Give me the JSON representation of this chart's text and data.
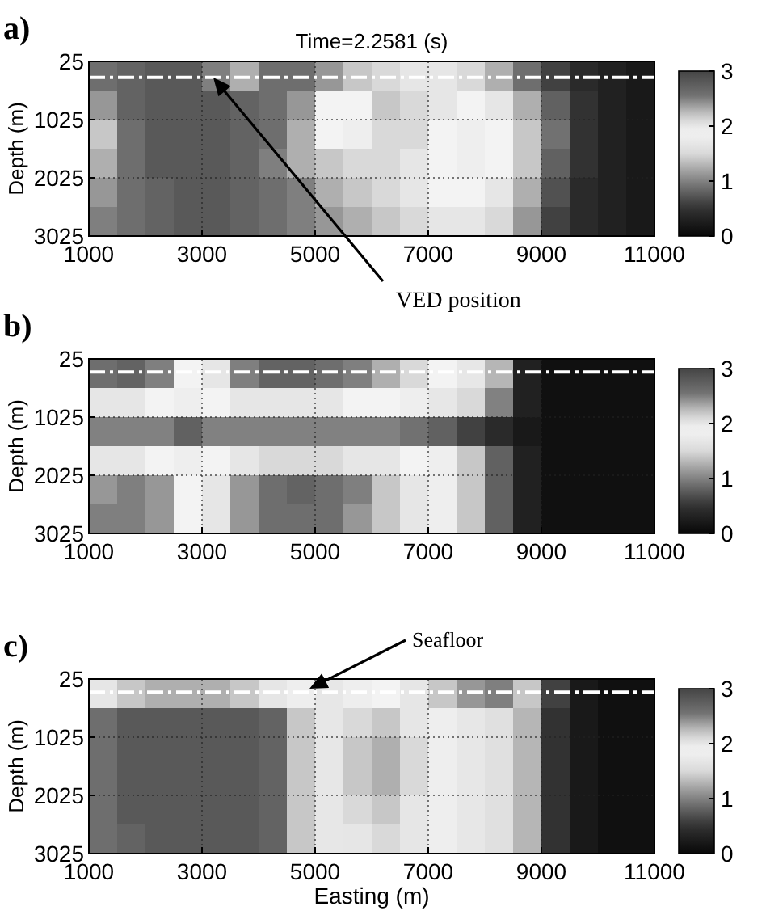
{
  "chart_data": [
    {
      "type": "heatmap",
      "title": "Time=2.2581 (s)",
      "ylabel": "Depth (m)",
      "annotations": [
        "a)",
        "VED position"
      ],
      "x": [
        1250,
        1750,
        2250,
        2750,
        3250,
        3750,
        4250,
        4750,
        5250,
        5750,
        6250,
        6750,
        7250,
        7750,
        8250,
        8750,
        9250,
        9750,
        10250,
        10750
      ],
      "cells": [
        [
          2.6,
          2.7,
          2.8,
          2.8,
          2.5,
          2.3,
          2.6,
          2.6,
          2.4,
          2.2,
          2.1,
          2.0,
          2.0,
          2.1,
          2.3,
          2.6,
          0.6,
          0.4,
          0.3,
          0.2
        ],
        [
          2.4,
          2.7,
          2.8,
          2.8,
          2.8,
          2.7,
          2.6,
          2.4,
          1.9,
          1.9,
          2.2,
          2.1,
          2.0,
          1.9,
          2.0,
          2.3,
          0.8,
          0.5,
          0.3,
          0.2
        ],
        [
          2.2,
          2.6,
          2.8,
          2.8,
          2.8,
          2.7,
          2.6,
          2.3,
          1.9,
          1.8,
          2.1,
          2.1,
          1.9,
          1.8,
          1.9,
          2.2,
          0.9,
          0.5,
          0.3,
          0.2
        ],
        [
          2.3,
          2.6,
          2.8,
          2.8,
          2.8,
          2.7,
          2.5,
          2.3,
          2.2,
          2.1,
          2.1,
          2.0,
          1.9,
          1.8,
          1.9,
          2.2,
          0.8,
          0.5,
          0.3,
          0.2
        ],
        [
          2.4,
          2.6,
          2.7,
          2.8,
          2.8,
          2.7,
          2.6,
          2.5,
          2.3,
          2.2,
          2.1,
          2.0,
          1.9,
          1.9,
          2.0,
          2.3,
          0.7,
          0.4,
          0.3,
          0.2
        ],
        [
          2.5,
          2.6,
          2.7,
          2.8,
          2.8,
          2.7,
          2.6,
          2.5,
          2.4,
          2.3,
          2.2,
          2.1,
          2.0,
          2.0,
          2.1,
          2.4,
          0.6,
          0.4,
          0.3,
          0.2
        ]
      ],
      "xlim": [
        1000,
        11000
      ],
      "xticks": [
        1000,
        3000,
        5000,
        7000,
        9000,
        11000
      ],
      "ylim": [
        3025,
        25
      ],
      "yticks": [
        25,
        1025,
        2025,
        3025
      ],
      "clim": [
        0,
        3
      ],
      "cticks": [
        0,
        1,
        2,
        3
      ],
      "grid": true,
      "ref_lines": [
        {
          "axis": "y",
          "value": 300,
          "line_style": "dashed",
          "color": "#ffffff"
        }
      ]
    },
    {
      "type": "heatmap",
      "ylabel": "Depth (m)",
      "annotations": [
        "b)"
      ],
      "x": [
        1250,
        1750,
        2250,
        2750,
        3250,
        3750,
        4250,
        4750,
        5250,
        5750,
        6250,
        6750,
        7250,
        7750,
        8250,
        8750,
        9250,
        9750,
        10250,
        10750
      ],
      "cells": [
        [
          2.6,
          2.7,
          2.5,
          1.9,
          2.0,
          2.5,
          2.7,
          2.7,
          2.6,
          2.5,
          2.3,
          2.1,
          1.9,
          1.7,
          1.3,
          0.3,
          0.1,
          0.1,
          0.1,
          0.1
        ],
        [
          2.0,
          2.0,
          1.9,
          1.8,
          1.9,
          2.0,
          2.0,
          2.0,
          2.0,
          1.9,
          1.9,
          1.8,
          1.7,
          1.5,
          1.0,
          0.3,
          0.1,
          0.1,
          0.1,
          0.1
        ],
        [
          1.0,
          1.0,
          1.0,
          0.8,
          1.0,
          1.0,
          1.0,
          1.0,
          1.0,
          1.0,
          1.0,
          0.9,
          0.8,
          0.6,
          0.4,
          0.2,
          0.1,
          0.1,
          0.1,
          0.1
        ],
        [
          2.0,
          2.0,
          1.9,
          1.8,
          1.9,
          2.0,
          2.1,
          2.1,
          2.1,
          2.0,
          2.0,
          1.9,
          1.8,
          1.4,
          0.8,
          0.3,
          0.1,
          0.1,
          0.1,
          0.1
        ],
        [
          2.4,
          2.5,
          2.4,
          1.9,
          2.0,
          2.4,
          2.6,
          2.7,
          2.6,
          2.5,
          2.2,
          2.0,
          1.8,
          1.4,
          0.8,
          0.3,
          0.1,
          0.1,
          0.1,
          0.1
        ],
        [
          2.5,
          2.5,
          2.4,
          1.9,
          2.0,
          2.4,
          2.6,
          2.6,
          2.6,
          2.4,
          2.2,
          2.0,
          1.8,
          1.4,
          0.8,
          0.3,
          0.1,
          0.1,
          0.1,
          0.1
        ]
      ],
      "xlim": [
        1000,
        11000
      ],
      "xticks": [
        1000,
        3000,
        5000,
        7000,
        9000,
        11000
      ],
      "ylim": [
        3025,
        25
      ],
      "yticks": [
        25,
        1025,
        2025,
        3025
      ],
      "clim": [
        0,
        3
      ],
      "cticks": [
        0,
        1,
        2,
        3
      ],
      "grid": true,
      "ref_lines": [
        {
          "axis": "y",
          "value": 250,
          "line_style": "dashed",
          "color": "#ffffff"
        }
      ]
    },
    {
      "type": "heatmap",
      "xlabel": "Easting (m)",
      "ylabel": "Depth (m)",
      "annotations": [
        "c)",
        "Seafloor"
      ],
      "x": [
        1250,
        1750,
        2250,
        2750,
        3250,
        3750,
        4250,
        4750,
        5250,
        5750,
        6250,
        6750,
        7250,
        7750,
        8250,
        8750,
        9250,
        9750,
        10250,
        10750
      ],
      "cells": [
        [
          2.0,
          2.2,
          2.3,
          2.3,
          2.3,
          2.2,
          2.0,
          1.8,
          1.7,
          1.8,
          1.9,
          2.0,
          2.2,
          2.4,
          2.5,
          2.2,
          0.6,
          0.2,
          0.1,
          0.1
        ],
        [
          2.6,
          2.8,
          2.8,
          2.8,
          2.8,
          2.8,
          2.7,
          2.2,
          1.7,
          2.1,
          2.2,
          2.0,
          1.8,
          1.7,
          1.6,
          1.3,
          0.5,
          0.2,
          0.1,
          0.1
        ],
        [
          2.6,
          2.8,
          2.8,
          2.8,
          2.8,
          2.8,
          2.7,
          2.2,
          1.7,
          2.2,
          2.3,
          2.1,
          1.8,
          1.7,
          1.6,
          1.3,
          0.5,
          0.2,
          0.1,
          0.1
        ],
        [
          2.6,
          2.8,
          2.8,
          2.8,
          2.8,
          2.8,
          2.7,
          2.2,
          1.7,
          2.2,
          2.3,
          2.1,
          1.8,
          1.7,
          1.6,
          1.3,
          0.5,
          0.2,
          0.1,
          0.1
        ],
        [
          2.6,
          2.8,
          2.8,
          2.8,
          2.8,
          2.8,
          2.7,
          2.2,
          1.7,
          2.1,
          2.2,
          2.0,
          1.8,
          1.7,
          1.6,
          1.3,
          0.5,
          0.2,
          0.1,
          0.1
        ],
        [
          2.6,
          2.7,
          2.8,
          2.8,
          2.8,
          2.8,
          2.7,
          2.2,
          1.7,
          2.0,
          2.1,
          2.0,
          1.8,
          1.7,
          1.6,
          1.3,
          0.5,
          0.2,
          0.1,
          0.1
        ]
      ],
      "xlim": [
        1000,
        11000
      ],
      "xticks": [
        1000,
        3000,
        5000,
        7000,
        9000,
        11000
      ],
      "ylim": [
        3025,
        25
      ],
      "yticks": [
        25,
        1025,
        2025,
        3025
      ],
      "clim": [
        0,
        3
      ],
      "cticks": [
        0,
        1,
        2,
        3
      ],
      "grid": true,
      "ref_lines": [
        {
          "axis": "y",
          "value": 250,
          "line_style": "dashed",
          "color": "#ffffff"
        }
      ]
    }
  ]
}
